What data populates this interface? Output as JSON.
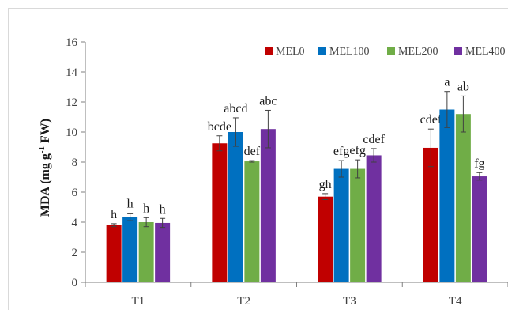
{
  "chart_data": {
    "type": "bar",
    "categories": [
      "T1",
      "T2",
      "T3",
      "T4"
    ],
    "ylabel": {
      "pre": "MDA (mg g",
      "sup": "-1",
      "post": " FW)"
    },
    "ylim": [
      0,
      16
    ],
    "yticks": [
      "0",
      "2",
      "4",
      "6",
      "8",
      "10",
      "12",
      "14",
      "16"
    ],
    "grid": false,
    "legend_position": "top-right",
    "series": [
      {
        "name": "MEL0",
        "color": "#c00000",
        "values": [
          3.8,
          9.25,
          5.7,
          8.95
        ],
        "errors": [
          0.1,
          0.5,
          0.2,
          1.25
        ],
        "labels": [
          "h",
          "bcde",
          "gh",
          "cdef"
        ]
      },
      {
        "name": "MEL100",
        "color": "#0070c0",
        "values": [
          4.35,
          10.0,
          7.55,
          11.5
        ],
        "errors": [
          0.25,
          0.95,
          0.55,
          1.2
        ],
        "labels": [
          "h",
          "abcd",
          "efg",
          "a"
        ]
      },
      {
        "name": "MEL200",
        "color": "#70ad47",
        "values": [
          4.0,
          8.05,
          7.55,
          11.2
        ],
        "errors": [
          0.3,
          0.05,
          0.6,
          1.2
        ],
        "labels": [
          "h",
          "def",
          "efg",
          "ab"
        ]
      },
      {
        "name": "MEL400",
        "color": "#7030a0",
        "values": [
          3.95,
          10.2,
          8.45,
          7.05
        ],
        "errors": [
          0.3,
          1.25,
          0.45,
          0.25
        ],
        "labels": [
          "h",
          "abc",
          "cdef",
          "fg"
        ]
      }
    ]
  }
}
